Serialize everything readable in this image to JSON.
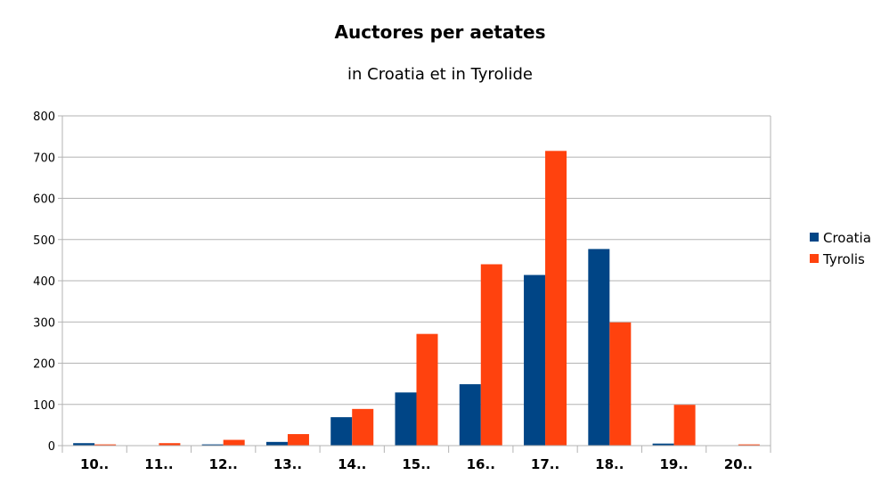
{
  "chart_data": {
    "type": "bar",
    "title": "Auctores per aetates",
    "subtitle": "in Croatia et in Tyrolide",
    "xlabel": "",
    "ylabel": "",
    "categories": [
      "10..",
      "11..",
      "12..",
      "13..",
      "14..",
      "15..",
      "16..",
      "17..",
      "18..",
      "19..",
      "20.."
    ],
    "series": [
      {
        "name": "Croatia",
        "color": "#004586",
        "values": [
          6,
          1,
          3,
          9,
          69,
          129,
          149,
          414,
          477,
          5,
          0
        ]
      },
      {
        "name": "Tyrolis",
        "color": "#ff420e",
        "values": [
          3,
          6,
          14,
          28,
          89,
          271,
          440,
          715,
          299,
          99,
          3
        ]
      }
    ],
    "ylim": [
      0,
      800
    ],
    "yticks": [
      0,
      100,
      200,
      300,
      400,
      500,
      600,
      700,
      800
    ],
    "grid": true,
    "legend_position": "right"
  }
}
